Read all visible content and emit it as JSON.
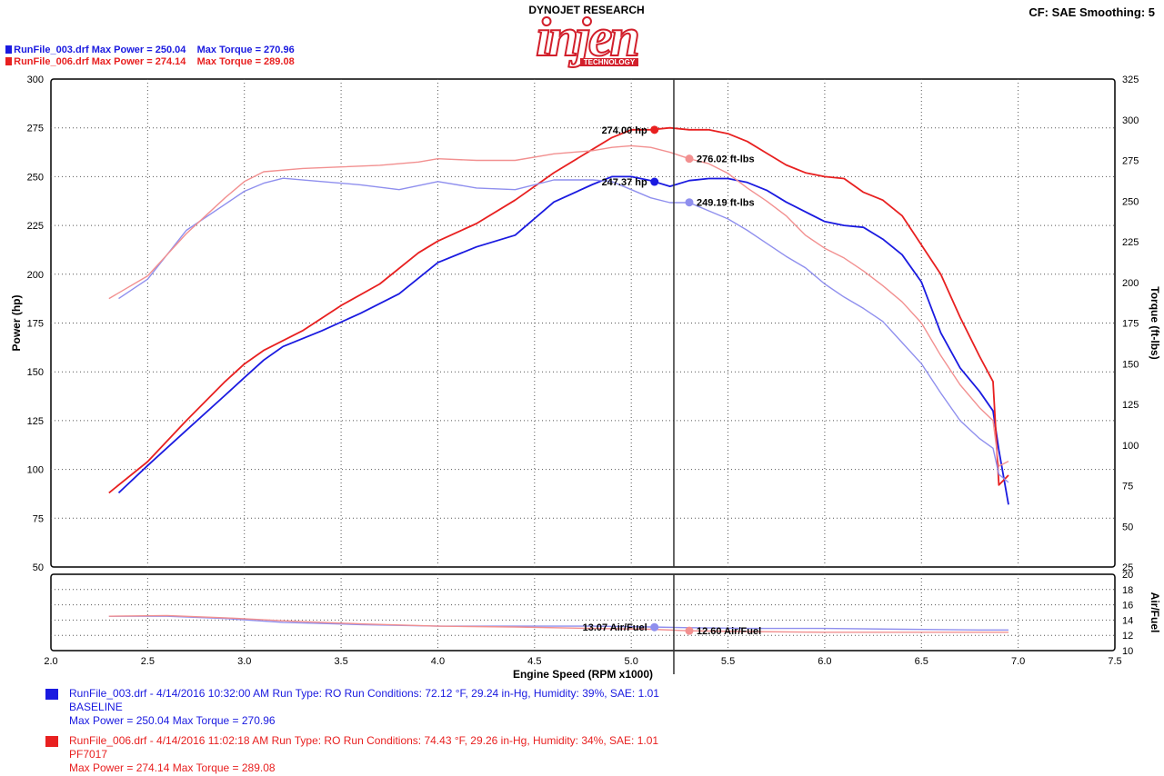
{
  "header": {
    "brand": "DYNOJET RESEARCH",
    "logo_text": "injen",
    "logo_sub": "TECHNOLOGY",
    "settings": "CF: SAE  Smoothing: 5",
    "legend": [
      {
        "file": "RunFile_003.drf",
        "power_label": "Max Power = 250.04",
        "torque_label": "Max Torque = 270.96",
        "color": "#1a1ae0"
      },
      {
        "file": "RunFile_006.drf",
        "power_label": "Max Power = 274.14",
        "torque_label": "Max Torque = 289.08",
        "color": "#e82020"
      }
    ]
  },
  "chart_data": [
    {
      "type": "line",
      "xlabel": "Engine Speed (RPM x1000)",
      "ylabel": "Power (hp)",
      "y2label": "Torque (ft-lbs)",
      "xlim": [
        2.0,
        7.5
      ],
      "ylim": [
        50,
        300
      ],
      "y2lim": [
        25,
        325
      ],
      "x_ticks": [
        "2.0",
        "2.5",
        "3.0",
        "3.5",
        "4.0",
        "4.5",
        "5.0",
        "5.5",
        "6.0",
        "6.5",
        "7.0",
        "7.5"
      ],
      "y_ticks": [
        "50",
        "75",
        "100",
        "125",
        "150",
        "175",
        "200",
        "225",
        "250",
        "275",
        "300"
      ],
      "y2_ticks": [
        "25",
        "50",
        "75",
        "100",
        "125",
        "150",
        "175",
        "200",
        "225",
        "250",
        "275",
        "300",
        "325"
      ],
      "grid": true,
      "cursor_x": 5.22,
      "series": [
        {
          "name": "RunFile_003.drf",
          "kind": "power",
          "color": "#1a1ae0",
          "x": [
            2.35,
            2.5,
            2.7,
            2.9,
            3.0,
            3.1,
            3.2,
            3.4,
            3.6,
            3.8,
            4.0,
            4.2,
            4.4,
            4.6,
            4.8,
            4.9,
            5.0,
            5.1,
            5.2,
            5.3,
            5.4,
            5.5,
            5.6,
            5.7,
            5.8,
            5.9,
            6.0,
            6.1,
            6.2,
            6.3,
            6.4,
            6.5,
            6.6,
            6.7,
            6.8,
            6.87,
            6.9,
            6.95
          ],
          "y": [
            88,
            102,
            120,
            138,
            147,
            156,
            163,
            171,
            180,
            190,
            206,
            214,
            220,
            237,
            246,
            250,
            250,
            248,
            245,
            248,
            249,
            249,
            247,
            243,
            237,
            232,
            227,
            225,
            224,
            218,
            210,
            196,
            170,
            152,
            140,
            130,
            110,
            82
          ]
        },
        {
          "name": "RunFile_006.drf",
          "kind": "power",
          "color": "#e82020",
          "x": [
            2.3,
            2.5,
            2.7,
            2.9,
            3.0,
            3.1,
            3.3,
            3.5,
            3.7,
            3.9,
            4.0,
            4.2,
            4.4,
            4.6,
            4.8,
            4.9,
            5.0,
            5.1,
            5.2,
            5.3,
            5.4,
            5.5,
            5.6,
            5.7,
            5.8,
            5.9,
            6.0,
            6.1,
            6.2,
            6.3,
            6.4,
            6.5,
            6.6,
            6.7,
            6.8,
            6.87,
            6.9,
            6.95
          ],
          "y": [
            88,
            104,
            125,
            145,
            154,
            161,
            171,
            184,
            195,
            211,
            217,
            226,
            238,
            252,
            264,
            270,
            274,
            274,
            275,
            274,
            274,
            272,
            268,
            262,
            256,
            252,
            250,
            249,
            242,
            238,
            230,
            215,
            200,
            178,
            158,
            145,
            92,
            97
          ]
        },
        {
          "name": "RunFile_003.drf",
          "kind": "torque",
          "color": "#8f8fee",
          "x": [
            2.35,
            2.5,
            2.7,
            2.9,
            3.0,
            3.1,
            3.2,
            3.4,
            3.6,
            3.8,
            4.0,
            4.2,
            4.4,
            4.6,
            4.8,
            4.9,
            5.0,
            5.1,
            5.2,
            5.3,
            5.4,
            5.5,
            5.6,
            5.7,
            5.8,
            5.9,
            6.0,
            6.1,
            6.2,
            6.3,
            6.4,
            6.5,
            6.6,
            6.7,
            6.8,
            6.87,
            6.9,
            6.95
          ],
          "y": [
            190,
            202,
            232,
            248,
            256,
            261,
            264,
            262,
            260,
            257,
            262,
            258,
            257,
            263,
            263,
            262,
            257,
            252,
            249,
            249,
            244,
            239,
            232,
            224,
            216,
            209,
            199,
            191,
            184,
            176,
            163,
            150,
            132,
            115,
            104,
            98,
            82,
            77
          ]
        },
        {
          "name": "RunFile_006.drf",
          "kind": "torque",
          "color": "#f29090",
          "x": [
            2.3,
            2.5,
            2.7,
            2.9,
            3.0,
            3.1,
            3.3,
            3.5,
            3.7,
            3.9,
            4.0,
            4.2,
            4.4,
            4.6,
            4.8,
            4.9,
            5.0,
            5.1,
            5.2,
            5.3,
            5.4,
            5.5,
            5.6,
            5.7,
            5.8,
            5.9,
            6.0,
            6.1,
            6.2,
            6.3,
            6.4,
            6.5,
            6.6,
            6.7,
            6.8,
            6.87,
            6.9,
            6.95
          ],
          "y": [
            190,
            204,
            230,
            252,
            262,
            268,
            270,
            271,
            272,
            274,
            276,
            275,
            275,
            279,
            281,
            283,
            284,
            283,
            280,
            276,
            273,
            267,
            258,
            250,
            241,
            229,
            221,
            215,
            207,
            198,
            188,
            175,
            155,
            137,
            123,
            115,
            87,
            90
          ]
        }
      ],
      "markers": [
        {
          "label": "274.00 hp",
          "x": 5.12,
          "y": 274.0,
          "axis": "left",
          "color": "#e82020",
          "side": "left"
        },
        {
          "label": "276.02 ft-lbs",
          "x": 5.3,
          "y": 276.02,
          "axis": "right",
          "color": "#f29090",
          "side": "right"
        },
        {
          "label": "247.37 hp",
          "x": 5.12,
          "y": 247.37,
          "axis": "left",
          "color": "#1a1ae0",
          "side": "left"
        },
        {
          "label": "249.19 ft-lbs",
          "x": 5.3,
          "y": 249.19,
          "axis": "right",
          "color": "#8f8fee",
          "side": "right"
        }
      ]
    },
    {
      "type": "line",
      "xlabel": "Engine Speed (RPM x1000)",
      "y2label": "Air/Fuel",
      "xlim": [
        2.0,
        7.5
      ],
      "y2lim": [
        10,
        20
      ],
      "x_ticks": [
        "2.0",
        "2.5",
        "3.0",
        "3.5",
        "4.0",
        "4.5",
        "5.0",
        "5.5",
        "6.0",
        "6.5",
        "7.0",
        "7.5"
      ],
      "y2_ticks": [
        "10",
        "12",
        "14",
        "16",
        "18",
        "20"
      ],
      "grid": true,
      "series": [
        {
          "name": "RunFile_003.drf",
          "kind": "air-fuel",
          "color": "#8f8fee",
          "x": [
            2.3,
            2.6,
            2.9,
            3.2,
            3.6,
            4.0,
            4.4,
            4.8,
            5.1,
            5.3,
            5.6,
            6.0,
            6.4,
            6.8,
            6.95
          ],
          "y": [
            14.5,
            14.5,
            14.2,
            13.7,
            13.4,
            13.2,
            13.2,
            13.2,
            13.1,
            13.0,
            12.9,
            12.9,
            12.8,
            12.7,
            12.7
          ]
        },
        {
          "name": "RunFile_006.drf",
          "kind": "air-fuel",
          "color": "#f29090",
          "x": [
            2.3,
            2.6,
            2.9,
            3.2,
            3.6,
            4.0,
            4.4,
            4.8,
            5.1,
            5.3,
            5.6,
            6.0,
            6.4,
            6.8,
            6.95
          ],
          "y": [
            14.5,
            14.6,
            14.3,
            13.9,
            13.5,
            13.2,
            13.1,
            12.9,
            12.8,
            12.6,
            12.5,
            12.4,
            12.4,
            12.4,
            12.4
          ]
        }
      ],
      "markers": [
        {
          "label": "13.07 Air/Fuel",
          "x": 5.12,
          "y": 13.07,
          "axis": "right",
          "color": "#8f8fee",
          "side": "left"
        },
        {
          "label": "12.60 Air/Fuel",
          "x": 5.3,
          "y": 12.6,
          "axis": "right",
          "color": "#f29090",
          "side": "right"
        }
      ]
    }
  ],
  "runs": [
    {
      "lines": [
        "RunFile_003.drf - 4/14/2016 10:32:00 AM  Run Type: RO  Run Conditions: 72.12 °F, 29.24 in-Hg,  Humidity:  39%, SAE: 1.01",
        "BASELINE",
        "Max Power = 250.04  Max Torque = 270.96"
      ],
      "color": "#1a1ae0"
    },
    {
      "lines": [
        "RunFile_006.drf - 4/14/2016 11:02:18 AM  Run Type: RO  Run Conditions: 74.43 °F, 29.26 in-Hg,  Humidity:  34%, SAE: 1.01",
        "PF7017",
        "Max Power = 274.14  Max Torque = 289.08"
      ],
      "color": "#e82020"
    }
  ]
}
